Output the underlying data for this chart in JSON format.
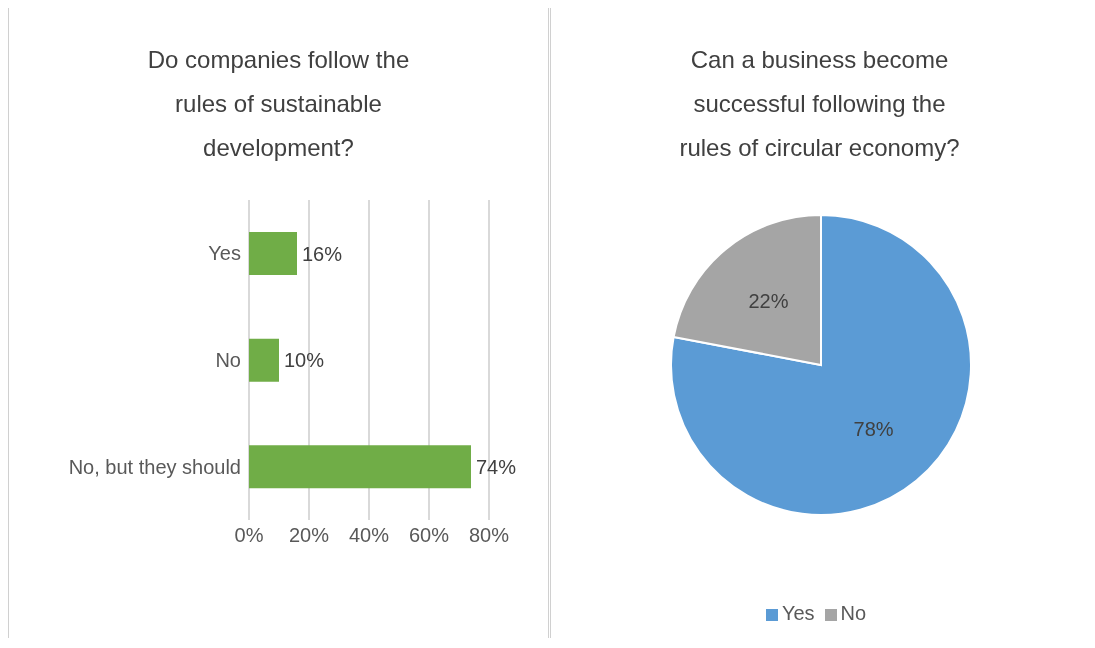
{
  "chart_data": [
    {
      "type": "bar",
      "orientation": "horizontal",
      "title": "Do companies follow the rules of sustainable development?",
      "categories": [
        "Yes",
        "No",
        "No, but they should"
      ],
      "values": [
        16,
        10,
        74
      ],
      "color": "#70ad47",
      "value_labels": [
        "16%",
        "10%",
        "74%"
      ],
      "xlim": [
        0,
        80
      ],
      "xticks": [
        {
          "value": 0,
          "label": "0%"
        },
        {
          "value": 20,
          "label": "20%"
        },
        {
          "value": 40,
          "label": "40%"
        },
        {
          "value": 60,
          "label": "60%"
        },
        {
          "value": 80,
          "label": "80%"
        }
      ],
      "grid": "x"
    },
    {
      "type": "pie",
      "title": "Can a business become successful following the rules of circular economy?",
      "categories": [
        "Yes",
        "No"
      ],
      "values": [
        78,
        22
      ],
      "colors": [
        "#5b9bd5",
        "#a5a5a5"
      ],
      "value_labels": [
        "78%",
        "22%"
      ],
      "legend": "bottom"
    }
  ]
}
